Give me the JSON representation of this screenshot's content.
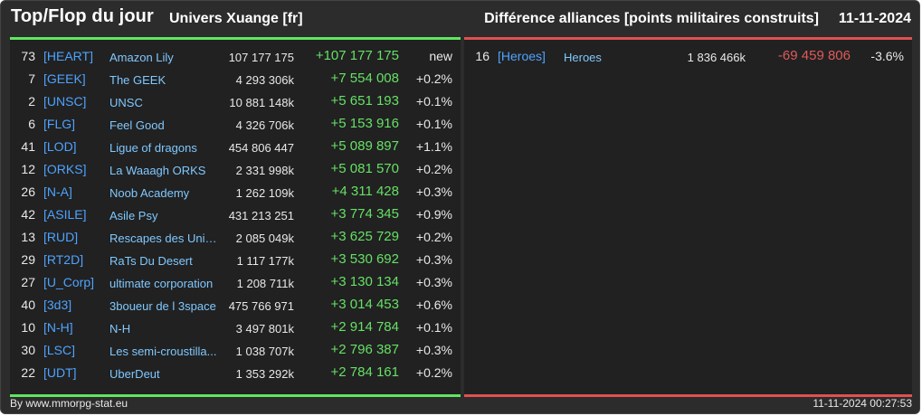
{
  "header": {
    "title": "Top/Flop du jour",
    "universe": "Univers Xuange [fr]",
    "diff_title": "Différence alliances [points militaires construits]",
    "date": "11-11-2024"
  },
  "top": [
    {
      "rank": "73",
      "tag": "[HEART]",
      "name": "Amazon Lily",
      "points": "107 177 175",
      "diff": "+107 177 175",
      "pct": "new"
    },
    {
      "rank": "7",
      "tag": "[GEEK]",
      "name": "The GEEK",
      "points": "4 293 306k",
      "diff": "+7 554 008",
      "pct": "+0.2%"
    },
    {
      "rank": "2",
      "tag": "[UNSC]",
      "name": "UNSC",
      "points": "10 881 148k",
      "diff": "+5 651 193",
      "pct": "+0.1%"
    },
    {
      "rank": "6",
      "tag": "[FLG]",
      "name": "Feel Good",
      "points": "4 326 706k",
      "diff": "+5 153 916",
      "pct": "+0.1%"
    },
    {
      "rank": "41",
      "tag": "[LOD]",
      "name": "Ligue of dragons",
      "points": "454 806 447",
      "diff": "+5 089 897",
      "pct": "+1.1%"
    },
    {
      "rank": "12",
      "tag": "[ORKS]",
      "name": "La Waaagh ORKS",
      "points": "2 331 998k",
      "diff": "+5 081 570",
      "pct": "+0.2%"
    },
    {
      "rank": "26",
      "tag": "[N-A]",
      "name": "Noob Academy",
      "points": "1 262 109k",
      "diff": "+4 311 428",
      "pct": "+0.3%"
    },
    {
      "rank": "42",
      "tag": "[ASILE]",
      "name": "Asile Psy",
      "points": "431 213 251",
      "diff": "+3 774 345",
      "pct": "+0.9%"
    },
    {
      "rank": "13",
      "tag": "[RUD]",
      "name": "Rescapes des Univ...",
      "points": "2 085 049k",
      "diff": "+3 625 729",
      "pct": "+0.2%"
    },
    {
      "rank": "29",
      "tag": "[RT2D]",
      "name": "RaTs Du Desert",
      "points": "1 117 177k",
      "diff": "+3 530 692",
      "pct": "+0.3%"
    },
    {
      "rank": "27",
      "tag": "[U_Corp]",
      "name": "ultimate corporation",
      "points": "1 208 711k",
      "diff": "+3 130 134",
      "pct": "+0.3%"
    },
    {
      "rank": "40",
      "tag": "[3d3]",
      "name": "3boueur de l 3space",
      "points": "475 766 971",
      "diff": "+3 014 453",
      "pct": "+0.6%"
    },
    {
      "rank": "10",
      "tag": "[N-H]",
      "name": "N-H",
      "points": "3 497 801k",
      "diff": "+2 914 784",
      "pct": "+0.1%"
    },
    {
      "rank": "30",
      "tag": "[LSC]",
      "name": "Les semi-croustilla...",
      "points": "1 038 707k",
      "diff": "+2 796 387",
      "pct": "+0.3%"
    },
    {
      "rank": "22",
      "tag": "[UDT]",
      "name": "UberDeut",
      "points": "1 353 292k",
      "diff": "+2 784 161",
      "pct": "+0.2%"
    }
  ],
  "flop": [
    {
      "rank": "16",
      "tag": "[Heroes]",
      "name": "Heroes",
      "points": "1 836 466k",
      "diff": "-69 459 806",
      "pct": "-3.6%"
    }
  ],
  "footer": {
    "source": "By www.mmorpg-stat.eu",
    "timestamp": "11-11-2024 00:27:53"
  },
  "colors": {
    "top_accent": "#5fe65f",
    "flop_accent": "#e05050",
    "tag": "#4ea3ff",
    "name": "#7fc8ff"
  }
}
